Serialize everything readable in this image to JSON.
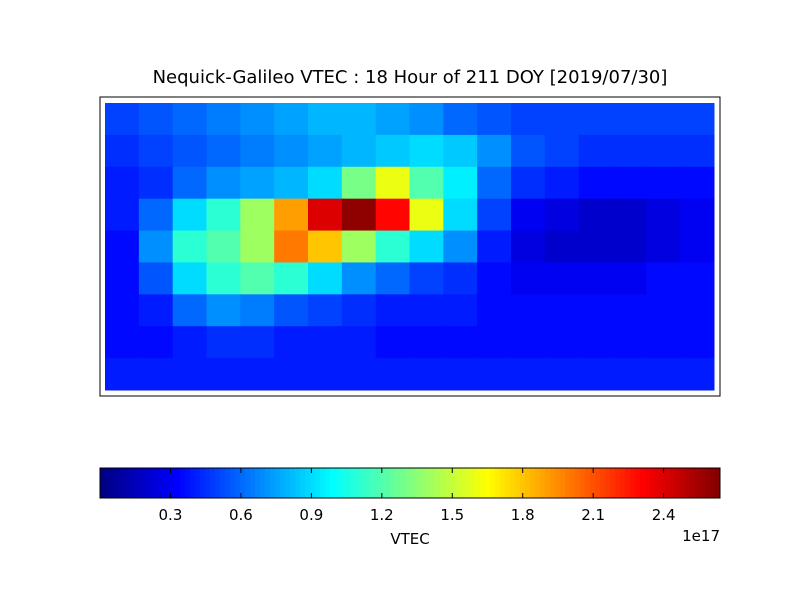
{
  "chart_data": {
    "type": "heatmap",
    "title": "Nequick-Galileo VTEC : 18 Hour of 211 DOY [2019/07/30]",
    "colormap": "jet",
    "values": [
      [
        0.5,
        0.55,
        0.6,
        0.65,
        0.7,
        0.75,
        0.8,
        0.8,
        0.75,
        0.7,
        0.6,
        0.55,
        0.5,
        0.5,
        0.5,
        0.5,
        0.5,
        0.5
      ],
      [
        0.45,
        0.5,
        0.55,
        0.6,
        0.65,
        0.7,
        0.75,
        0.8,
        0.85,
        0.9,
        0.85,
        0.7,
        0.55,
        0.5,
        0.45,
        0.45,
        0.45,
        0.45
      ],
      [
        0.4,
        0.45,
        0.6,
        0.7,
        0.75,
        0.8,
        0.9,
        1.3,
        1.6,
        1.2,
        0.95,
        0.6,
        0.45,
        0.4,
        0.35,
        0.35,
        0.35,
        0.35
      ],
      [
        0.4,
        0.6,
        0.9,
        1.1,
        1.4,
        1.9,
        2.4,
        2.6,
        2.3,
        1.6,
        0.9,
        0.5,
        0.3,
        0.25,
        0.2,
        0.2,
        0.25,
        0.3
      ],
      [
        0.35,
        0.7,
        1.1,
        1.2,
        1.4,
        2.0,
        1.8,
        1.4,
        1.1,
        0.9,
        0.7,
        0.4,
        0.25,
        0.2,
        0.2,
        0.2,
        0.25,
        0.3
      ],
      [
        0.35,
        0.55,
        0.9,
        1.1,
        1.2,
        1.1,
        0.9,
        0.7,
        0.6,
        0.5,
        0.45,
        0.35,
        0.3,
        0.3,
        0.3,
        0.3,
        0.35,
        0.35
      ],
      [
        0.35,
        0.4,
        0.6,
        0.7,
        0.65,
        0.55,
        0.5,
        0.45,
        0.4,
        0.4,
        0.4,
        0.35,
        0.35,
        0.35,
        0.35,
        0.35,
        0.35,
        0.35
      ],
      [
        0.35,
        0.35,
        0.4,
        0.45,
        0.45,
        0.4,
        0.4,
        0.4,
        0.35,
        0.35,
        0.35,
        0.35,
        0.35,
        0.35,
        0.35,
        0.35,
        0.35,
        0.35
      ],
      [
        0.4,
        0.4,
        0.4,
        0.4,
        0.4,
        0.4,
        0.4,
        0.4,
        0.4,
        0.4,
        0.4,
        0.4,
        0.4,
        0.4,
        0.4,
        0.4,
        0.4,
        0.4
      ]
    ],
    "colorbar": {
      "label": "VTEC",
      "clim": [
        0,
        2.64
      ],
      "ticks": [
        0.3,
        0.6,
        0.9,
        1.2,
        1.5,
        1.8,
        2.1,
        2.4
      ],
      "offset_label": "1e17"
    }
  }
}
